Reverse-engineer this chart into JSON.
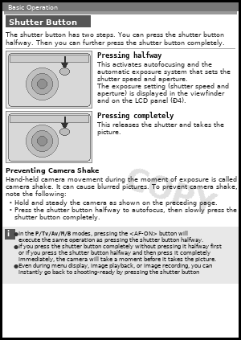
{
  "page_bg": "#ffffff",
  "outer_bg": "#000000",
  "header_bg": "#777777",
  "header_text": "Basic Operation",
  "header_text_color": "#ffffff",
  "header_font_size": 5.0,
  "title_box_bg": "#555555",
  "title_text": "Shutter Button",
  "title_text_color": "#ffffff",
  "title_font_size": 7.0,
  "intro_font_size": 6.0,
  "intro_lines": [
    "The shutter button has two steps. You can press the shutter button",
    "halfway. Then you can further press the shutter button completely."
  ],
  "section1_title": "Pressing halfway",
  "section1_lines": [
    "This activates autofocusing and the",
    "automatic exposure system that sets the",
    "shutter speed and aperture.",
    "The exposure setting (shutter speed and",
    "aperture) is displayed in the viewfinder",
    "and on the LCD panel (Ð4)."
  ],
  "section2_title": "Pressing completely",
  "section2_lines": [
    "This releases the shutter and takes the",
    "picture."
  ],
  "section3_title": "Preventing Camera Shake",
  "section3_lines": [
    "Hand-held camera movement during the moment of exposure is called",
    "camera shake. It can cause blurred pictures. To prevent camera shake,",
    "note the following:"
  ],
  "bullet1_lines": [
    "Hold and steady the camera as shown on the preceding page."
  ],
  "bullet2_lines": [
    "Press the shutter button halfway to autofocus, then slowly press the",
    "shutter button completely."
  ],
  "note_bg": "#e8e8e8",
  "note_icon_bg": "#555555",
  "note_lines": [
    {
      "bullet": true,
      "bold": "P/Tv/Av/M/B",
      "rest": " modes, pressing the <AF-ON> button will"
    },
    {
      "bullet": false,
      "bold": "",
      "rest": "execute the same operation as pressing the shutter button halfway."
    },
    {
      "bullet": true,
      "bold": "",
      "rest": "If you press the shutter button completely without pressing it halfway first"
    },
    {
      "bullet": false,
      "bold": "",
      "rest": "or if you press the shutter button halfway and then press it completely"
    },
    {
      "bullet": false,
      "bold": "",
      "rest": "immediately, the camera will take a moment before it takes the picture."
    },
    {
      "bullet": true,
      "bold": "",
      "rest": "Even during menu display, image playback, or image recording, you can"
    },
    {
      "bullet": false,
      "bold": "",
      "rest": "instantly go back to shooting-ready by pressing the shutter button"
    }
  ],
  "watermark_text": "COPY",
  "watermark_color": "#cccccc",
  "body_font_size": 5.5,
  "section_title_font_size": 6.8,
  "note_font_size": 5.0,
  "img_bg": "#e0e0e0",
  "img_border": "#999999"
}
